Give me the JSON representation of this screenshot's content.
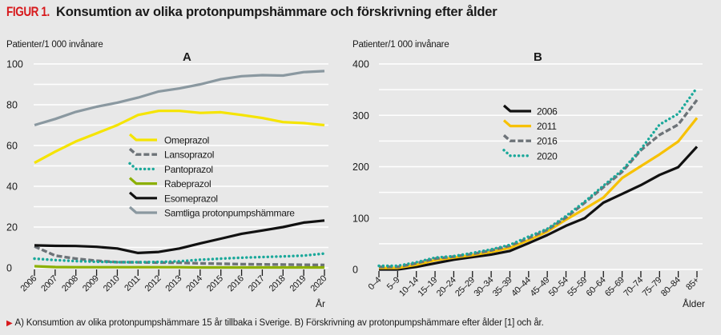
{
  "figure": {
    "label": "FIGUR 1.",
    "title": "Konsumtion av olika protonpumpshämmare och förskrivning efter ålder",
    "caption_marker": "▶",
    "caption": "A) Konsumtion av olika protonpumpshämmare 15 år tillbaka i Sverige. B) Förskrivning av protonpumpshämmare efter ålder [1] och år."
  },
  "colors": {
    "background": "#e8e8e8",
    "gridline": "#ffffff",
    "accent_red": "#d7191c"
  },
  "chart_data": [
    {
      "id": "A",
      "type": "line",
      "panel_label": "A",
      "ylabel": "Patienter/1 000 invånare",
      "xlabel": "År",
      "ylim": [
        0,
        100
      ],
      "yticks": [
        0,
        20,
        40,
        60,
        80,
        100
      ],
      "minor_gridlines": [
        10,
        30,
        50,
        70,
        90
      ],
      "grid": true,
      "legend_position": "center",
      "x": [
        "2006",
        "2007",
        "2008",
        "2009",
        "2010",
        "2011",
        "2012",
        "2013",
        "2014",
        "2015",
        "2016",
        "2017",
        "2018",
        "2019",
        "2020"
      ],
      "series": [
        {
          "name": "Omeprazol",
          "color": "#f5e400",
          "style": "solid",
          "values": [
            51.5,
            57,
            62,
            66,
            70,
            75,
            77,
            77,
            76,
            76.3,
            75,
            73.5,
            71.5,
            71,
            70
          ]
        },
        {
          "name": "Lansoprazol",
          "color": "#6d7378",
          "style": "dashed",
          "values": [
            10.5,
            6,
            4.5,
            3.5,
            2.8,
            2.7,
            2.6,
            2.5,
            2.2,
            2,
            1.8,
            1.7,
            1.6,
            1.5,
            1.4
          ]
        },
        {
          "name": "Pantoprazol",
          "color": "#1aa89a",
          "style": "dotted",
          "values": [
            4.5,
            3.8,
            3.3,
            3,
            2.8,
            2.8,
            2.9,
            3.2,
            4,
            4.5,
            5,
            5.3,
            5.6,
            6,
            7
          ]
        },
        {
          "name": "Rabeprazol",
          "color": "#8cb000",
          "style": "solid",
          "values": [
            0.8,
            0.4,
            0.3,
            0.3,
            0.3,
            0.3,
            0.3,
            0.3,
            0.2,
            0.2,
            0.2,
            0.2,
            0.2,
            0.2,
            0.2
          ]
        },
        {
          "name": "Esomeprazol",
          "color": "#111111",
          "style": "solid",
          "values": [
            11,
            10.8,
            10.7,
            10.3,
            9.5,
            7.3,
            7.8,
            9.5,
            12,
            14.3,
            16.7,
            18.3,
            20,
            22.2,
            23.2
          ]
        },
        {
          "name": "Samtliga protonpumpshämmare",
          "color": "#8a98a0",
          "style": "solid",
          "values": [
            70,
            73,
            76.5,
            79,
            81,
            83.5,
            86.5,
            88,
            90,
            92.5,
            94,
            94.5,
            94.3,
            96,
            96.5
          ]
        }
      ]
    },
    {
      "id": "B",
      "type": "line",
      "panel_label": "B",
      "ylabel": "Patienter/1 000 invånare",
      "xlabel": "Ålder",
      "ylim": [
        0,
        400
      ],
      "yticks": [
        0,
        100,
        200,
        300,
        400
      ],
      "minor_gridlines": [
        50,
        150,
        250,
        350
      ],
      "grid": true,
      "legend_position": "center",
      "x": [
        "0–4",
        "5–9",
        "10–14",
        "15–19",
        "20–24",
        "25–29",
        "30–34",
        "35–39",
        "40–44",
        "45–49",
        "50–54",
        "55–59",
        "60–64",
        "65–69",
        "70–74",
        "75–79",
        "80–84",
        "85+"
      ],
      "series": [
        {
          "name": "2006",
          "color": "#111111",
          "style": "solid",
          "values": [
            0,
            0,
            5,
            12,
            19,
            24,
            29,
            36,
            51,
            67,
            85,
            100,
            130,
            147,
            164,
            184,
            199,
            239
          ]
        },
        {
          "name": "2011",
          "color": "#f7c100",
          "style": "solid",
          "values": [
            3,
            3,
            9,
            18,
            23,
            28,
            34,
            42,
            57,
            74,
            97,
            118,
            140,
            178,
            201,
            224,
            249,
            295
          ]
        },
        {
          "name": "2016",
          "color": "#6d7378",
          "style": "dashed",
          "values": [
            5,
            5,
            12,
            21,
            25,
            30,
            37,
            46,
            61,
            77,
            101,
            130,
            160,
            190,
            232,
            262,
            282,
            330
          ]
        },
        {
          "name": "2020",
          "color": "#1aa89a",
          "style": "dotted",
          "values": [
            7,
            7,
            14,
            23,
            26,
            32,
            39,
            48,
            64,
            79,
            104,
            132,
            163,
            193,
            234,
            282,
            303,
            354
          ]
        }
      ]
    }
  ]
}
